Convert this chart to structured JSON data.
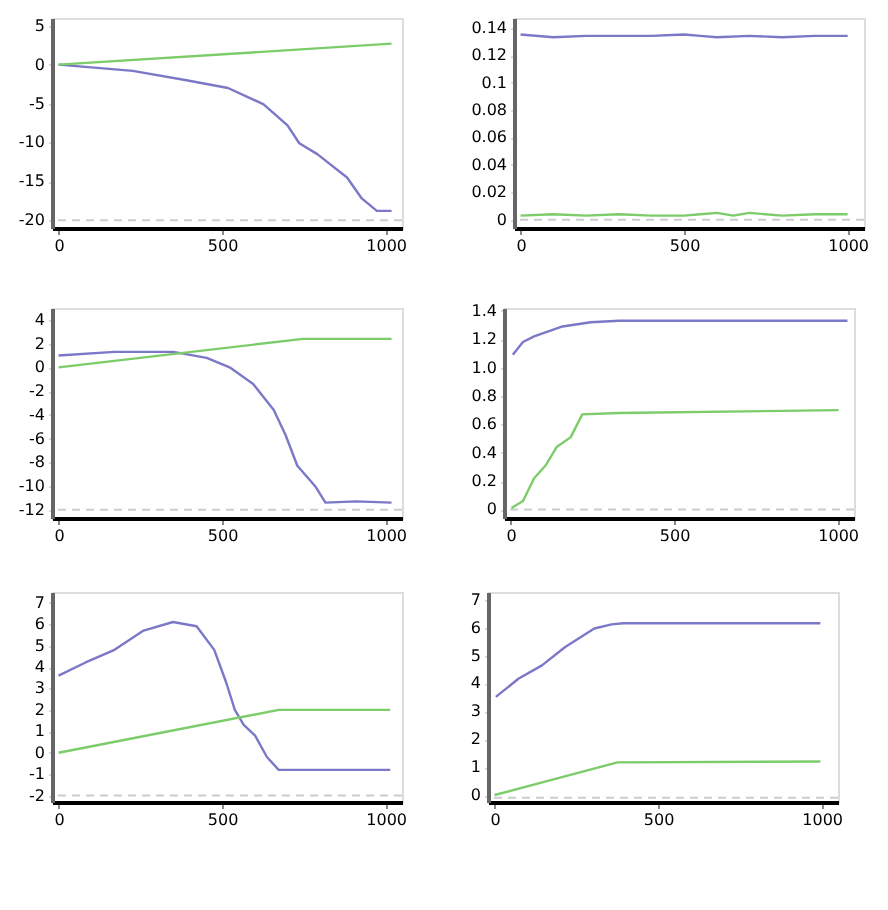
{
  "chart_data": [
    {
      "type": "line",
      "xlim": [
        -20,
        1050
      ],
      "xticks": [
        0,
        500,
        1000
      ],
      "ylim": [
        -21,
        6
      ],
      "yticks": [
        5,
        0,
        -5,
        -10,
        -15,
        -20
      ],
      "grid": false,
      "ref_lines": [
        {
          "axis": "y",
          "value": -20,
          "color": "#cccccc",
          "line_style": "dashed"
        }
      ],
      "series": [
        {
          "color": "#7b78c8",
          "x": [
            0,
            227,
            391,
            518,
            627,
            700,
            736,
            791,
            882,
            927,
            973,
            1018
          ],
          "values": [
            0,
            -0.8,
            -2,
            -3,
            -5.1,
            -7.8,
            -10.1,
            -11.5,
            -14.5,
            -17.2,
            -18.8,
            -18.8
          ]
        },
        {
          "color": "#7ccc6a",
          "x": [
            0,
            1018
          ],
          "values": [
            0,
            2.7
          ]
        }
      ]
    },
    {
      "type": "line",
      "xlim": [
        -20,
        1050
      ],
      "xticks": [
        0,
        500,
        1000
      ],
      "ylim": [
        -0.006,
        0.147
      ],
      "yticks": [
        0,
        0.02,
        0.04,
        0.06,
        0.08,
        0.1,
        0.12,
        0.14
      ],
      "grid": false,
      "ref_lines": [
        {
          "axis": "y",
          "value": 0,
          "color": "#cccccc",
          "line_style": "dashed"
        }
      ],
      "series": [
        {
          "color": "#7b78c8",
          "x": [
            0,
            100,
            200,
            300,
            400,
            500,
            550,
            600,
            700,
            800,
            900,
            1000
          ],
          "values": [
            0.135,
            0.133,
            0.134,
            0.134,
            0.134,
            0.135,
            0.134,
            0.133,
            0.134,
            0.133,
            0.134,
            0.134
          ]
        },
        {
          "color": "#7ccc6a",
          "x": [
            0,
            100,
            200,
            300,
            400,
            500,
            550,
            600,
            650,
            700,
            800,
            900,
            1000
          ],
          "values": [
            0.003,
            0.004,
            0.003,
            0.004,
            0.003,
            0.003,
            0.004,
            0.005,
            0.003,
            0.005,
            0.003,
            0.004,
            0.004
          ]
        }
      ]
    },
    {
      "type": "line",
      "xlim": [
        -20,
        1050
      ],
      "xticks": [
        0,
        500,
        1000
      ],
      "ylim": [
        -12.7,
        5
      ],
      "yticks": [
        4,
        2,
        0,
        -2,
        -4,
        -6,
        -8,
        -10,
        -12
      ],
      "grid": false,
      "ref_lines": [
        {
          "axis": "y",
          "value": -12,
          "color": "#cccccc",
          "line_style": "dashed"
        }
      ],
      "series": [
        {
          "color": "#7b78c8",
          "x": [
            0,
            171,
            351,
            453,
            523,
            595,
            658,
            694,
            730,
            784,
            816,
            910,
            1018
          ],
          "values": [
            1.0,
            1.3,
            1.3,
            0.8,
            0,
            -1.4,
            -3.6,
            -5.7,
            -8.3,
            -10,
            -11.4,
            -11.3,
            -11.4
          ]
        },
        {
          "color": "#7ccc6a",
          "x": [
            0,
            748,
            1018
          ],
          "values": [
            0,
            2.4,
            2.4
          ]
        }
      ]
    },
    {
      "type": "line",
      "xlim": [
        -20,
        1050
      ],
      "xticks": [
        0,
        500,
        1000
      ],
      "ylim": [
        -0.06,
        1.42
      ],
      "yticks": [
        0,
        0.2,
        0.4,
        0.6,
        0.8,
        {
          "value": 1,
          "label": "1.0"
        },
        1.2,
        1.4
      ],
      "grid": false,
      "ref_lines": [
        {
          "axis": "y",
          "value": 0,
          "color": "#cccccc",
          "line_style": "dashed"
        }
      ],
      "series": [
        {
          "color": "#7b78c8",
          "x": [
            7,
            38,
            72,
            159,
            245,
            331,
            1030
          ],
          "values": [
            1.09,
            1.18,
            1.22,
            1.29,
            1.32,
            1.33,
            1.33
          ]
        },
        {
          "color": "#7ccc6a",
          "x": [
            3,
            38,
            72,
            107,
            141,
            184,
            219,
            331,
            1003
          ],
          "values": [
            0.01,
            0.06,
            0.22,
            0.31,
            0.44,
            0.51,
            0.67,
            0.68,
            0.7
          ]
        }
      ]
    },
    {
      "type": "line",
      "xlim": [
        -20,
        1050
      ],
      "xticks": [
        0,
        500,
        1000
      ],
      "ylim": [
        -2.3,
        7.5
      ],
      "yticks": [
        7,
        6,
        5,
        4,
        3,
        2,
        1,
        0,
        -1,
        -2
      ],
      "grid": false,
      "ref_lines": [
        {
          "axis": "y",
          "value": -2,
          "color": "#cccccc",
          "line_style": "dashed"
        }
      ],
      "series": [
        {
          "color": "#7b78c8",
          "x": [
            0,
            81,
            171,
            260,
            350,
            422,
            476,
            512,
            539,
            566,
            601,
            637,
            673,
            799,
            907,
            1014
          ],
          "values": [
            3.6,
            4.2,
            4.8,
            5.7,
            6.1,
            5.9,
            4.8,
            3.3,
            2,
            1.3,
            0.8,
            -0.2,
            -0.8,
            -0.8,
            -0.8,
            -0.8
          ]
        },
        {
          "color": "#7ccc6a",
          "x": [
            0,
            673,
            1014
          ],
          "values": [
            0,
            2.0,
            2.0
          ]
        }
      ]
    },
    {
      "type": "line",
      "xlim": [
        -20,
        1050
      ],
      "xticks": [
        0,
        500,
        1000
      ],
      "ylim": [
        -0.25,
        7.28
      ],
      "yticks": [
        0,
        1,
        2,
        3,
        4,
        5,
        6,
        7
      ],
      "grid": false,
      "ref_lines": [
        {
          "axis": "y",
          "value": -0.1,
          "color": "#cccccc",
          "line_style": "dashed"
        }
      ],
      "series": [
        {
          "color": "#7b78c8",
          "x": [
            4,
            74,
            145,
            216,
            305,
            358,
            394,
            996
          ],
          "values": [
            3.52,
            4.18,
            4.65,
            5.31,
            5.97,
            6.12,
            6.16,
            6.16
          ]
        },
        {
          "color": "#7ccc6a",
          "x": [
            0,
            163,
            376,
            996
          ],
          "values": [
            0,
            0.51,
            1.17,
            1.2
          ]
        }
      ]
    }
  ]
}
